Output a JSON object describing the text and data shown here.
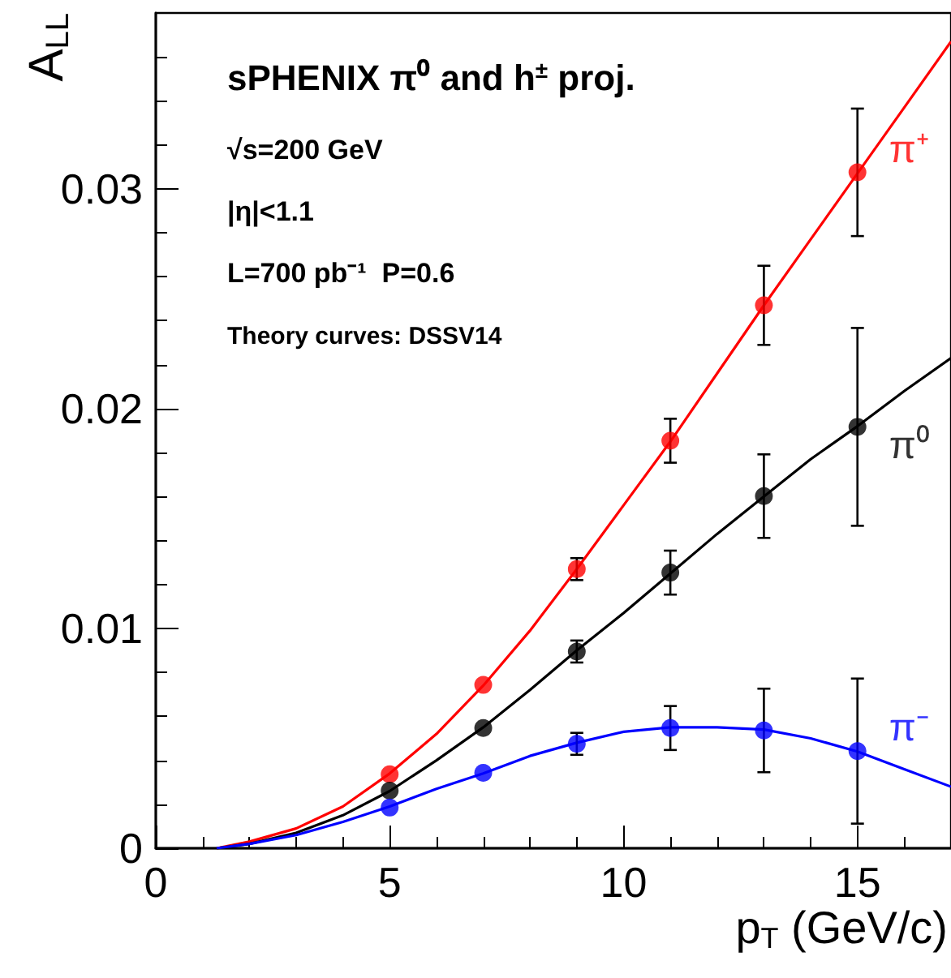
{
  "chart_data": {
    "type": "scatter",
    "title": "sPHENIX π⁰ and h$^{±}$ proj.",
    "annotations": [
      "√s=200 GeV",
      "|η|<1.1",
      "L=700 pb⁻¹  P=0.6",
      "Theory curves: DSSV14"
    ],
    "xlabel": "p$_{T}$ (GeV/c)",
    "ylabel": "A$_{LL}$",
    "xlim": [
      0,
      17
    ],
    "xticks": [
      0,
      5,
      10,
      15
    ],
    "ylim": [
      0,
      0.038
    ],
    "yticks": [
      0,
      0.01,
      0.02,
      0.03
    ],
    "grid": false,
    "legend": false,
    "marker": "circle",
    "series": [
      {
        "name": "π⁺",
        "color": "#ff0000",
        "x": [
          5,
          7,
          9,
          11,
          13,
          15
        ],
        "values": [
          0.00337,
          0.00743,
          0.0127,
          0.01854,
          0.0247,
          0.03075
        ],
        "errors": [
          null,
          null,
          0.0005,
          0.001,
          0.0018,
          0.0029
        ]
      },
      {
        "name": "π⁰",
        "color": "#000000",
        "x": [
          5,
          7,
          9,
          11,
          13,
          15
        ],
        "values": [
          0.00262,
          0.00547,
          0.00895,
          0.01254,
          0.01602,
          0.01917
        ],
        "errors": [
          null,
          null,
          0.0005,
          0.001,
          0.0019,
          0.0045
        ]
      },
      {
        "name": "π⁻",
        "color": "#0000ff",
        "x": [
          5,
          7,
          9,
          11,
          13,
          15
        ],
        "values": [
          0.00185,
          0.00343,
          0.00475,
          0.00547,
          0.00536,
          0.00442
        ],
        "errors": [
          null,
          null,
          0.0005,
          0.001,
          0.0019,
          0.0033
        ]
      },
      {
        "type": "line",
        "marker": "none",
        "color": "#ff0000",
        "x": [
          1.3,
          2,
          3,
          4,
          5,
          6,
          7,
          8,
          9,
          10,
          11,
          12,
          13,
          14,
          15,
          16,
          17
        ],
        "values": [
          0,
          0.0003,
          0.0009,
          0.0019,
          0.0034,
          0.0052,
          0.0074,
          0.0099,
          0.0127,
          0.0156,
          0.0185,
          0.0216,
          0.0247,
          0.0277,
          0.0307,
          0.0337,
          0.0367
        ]
      },
      {
        "type": "line",
        "marker": "none",
        "color": "#000000",
        "x": [
          1.3,
          2,
          3,
          4,
          5,
          6,
          7,
          8,
          9,
          10,
          11,
          12,
          13,
          14,
          15,
          16,
          17
        ],
        "values": [
          0,
          0.0002,
          0.0007,
          0.0015,
          0.0026,
          0.004,
          0.0055,
          0.0072,
          0.009,
          0.0107,
          0.0125,
          0.0143,
          0.016,
          0.0177,
          0.0192,
          0.0208,
          0.0223
        ]
      },
      {
        "type": "line",
        "marker": "none",
        "color": "#0000ff",
        "x": [
          1.3,
          2,
          3,
          4,
          5,
          6,
          7,
          8,
          9,
          10,
          11,
          12,
          13,
          14,
          15,
          16,
          17
        ],
        "values": [
          0,
          0.0002,
          0.0006,
          0.0012,
          0.0019,
          0.0027,
          0.0034,
          0.0042,
          0.0048,
          0.0053,
          0.0055,
          0.0055,
          0.0054,
          0.005,
          0.0044,
          0.0036,
          0.0028
        ]
      }
    ]
  }
}
